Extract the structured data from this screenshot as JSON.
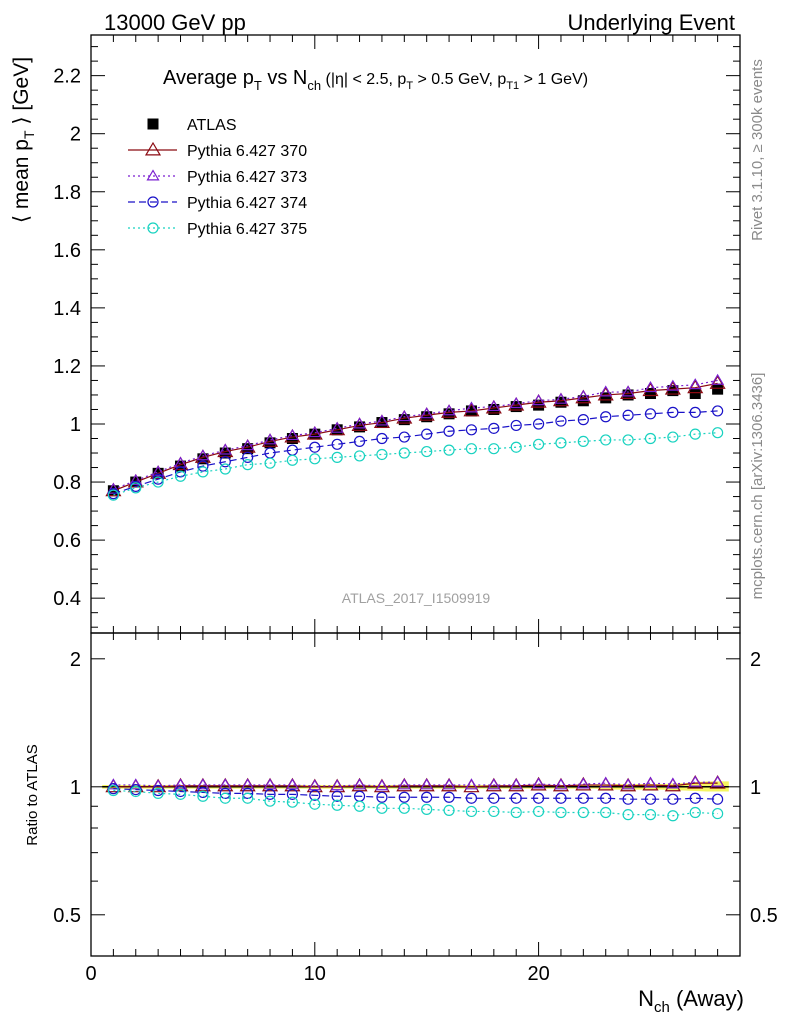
{
  "header": {
    "left": "13000 GeV pp",
    "right": "Underlying Event"
  },
  "side": {
    "rivet": "Rivet 3.1.10, ≥ 300k events",
    "mcplots": "mcplots.cern.ch [arXiv:1306.3436]"
  },
  "watermark": "ATLAS_2017_I1509919",
  "chart_data": [
    {
      "type": "scatter",
      "title": "Average p_T vs N_ch (|η| < 2.5, p_T > 0.5 GeV, p_T1 > 1 GeV)",
      "ylabel": "⟨ mean p_T ⟩ [GeV]",
      "xlim": [
        0,
        29
      ],
      "ylim": [
        0.28,
        2.34
      ],
      "yticks": [
        "0.4",
        "0.6",
        "0.8",
        "1",
        "1.2",
        "1.4",
        "1.6",
        "1.8",
        "2",
        "2.2"
      ],
      "legend_position": "top-left",
      "x": [
        1,
        2,
        3,
        4,
        5,
        6,
        7,
        8,
        9,
        10,
        11,
        12,
        13,
        14,
        15,
        16,
        17,
        18,
        19,
        20,
        21,
        22,
        23,
        24,
        25,
        26,
        27,
        28
      ],
      "series": [
        {
          "name": "ATLAS",
          "color": "#000000",
          "marker": "filled-square",
          "line": "none",
          "values": [
            0.77,
            0.8,
            0.83,
            0.855,
            0.88,
            0.9,
            0.915,
            0.935,
            0.95,
            0.965,
            0.98,
            0.99,
            1.005,
            1.015,
            1.025,
            1.035,
            1.045,
            1.05,
            1.06,
            1.065,
            1.075,
            1.08,
            1.09,
            1.1,
            1.105,
            1.115,
            1.105,
            1.12
          ]
        },
        {
          "name": "Pythia 6.427 370",
          "color": "#8b0a12",
          "marker": "open-triangle",
          "line": "solid",
          "values": [
            0.77,
            0.8,
            0.83,
            0.86,
            0.885,
            0.905,
            0.92,
            0.94,
            0.955,
            0.965,
            0.98,
            0.995,
            1.005,
            1.02,
            1.03,
            1.04,
            1.045,
            1.055,
            1.065,
            1.075,
            1.08,
            1.09,
            1.1,
            1.105,
            1.115,
            1.12,
            1.125,
            1.14
          ]
        },
        {
          "name": "Pythia 6.427 373",
          "color": "#7a1fd0",
          "marker": "open-triangle-small",
          "line": "dotted",
          "values": [
            0.775,
            0.805,
            0.835,
            0.865,
            0.89,
            0.91,
            0.925,
            0.945,
            0.96,
            0.97,
            0.985,
            1.0,
            1.01,
            1.025,
            1.035,
            1.045,
            1.055,
            1.06,
            1.07,
            1.08,
            1.085,
            1.095,
            1.11,
            1.11,
            1.125,
            1.13,
            1.135,
            1.15
          ]
        },
        {
          "name": "Pythia 6.427 374",
          "color": "#1a12c8",
          "marker": "open-circle",
          "line": "dashed",
          "values": [
            0.76,
            0.785,
            0.81,
            0.835,
            0.855,
            0.87,
            0.885,
            0.9,
            0.91,
            0.92,
            0.93,
            0.94,
            0.95,
            0.955,
            0.965,
            0.975,
            0.98,
            0.985,
            0.995,
            1.0,
            1.01,
            1.015,
            1.025,
            1.03,
            1.035,
            1.04,
            1.04,
            1.045
          ]
        },
        {
          "name": "Pythia 6.427 375",
          "color": "#18d2c0",
          "marker": "open-circle",
          "line": "dotted",
          "values": [
            0.755,
            0.78,
            0.8,
            0.82,
            0.835,
            0.845,
            0.86,
            0.865,
            0.875,
            0.88,
            0.885,
            0.89,
            0.895,
            0.9,
            0.905,
            0.91,
            0.915,
            0.915,
            0.92,
            0.93,
            0.935,
            0.94,
            0.945,
            0.945,
            0.95,
            0.955,
            0.965,
            0.97
          ]
        }
      ]
    },
    {
      "type": "scatter",
      "ylabel": "Ratio to ATLAS",
      "xlabel": "N_ch (Away)",
      "xlim": [
        0,
        29
      ],
      "xticks": [
        "0",
        "10",
        "20"
      ],
      "ylim": [
        0.4,
        2.3
      ],
      "yscale": "log",
      "yticks": [
        "0.5",
        "1",
        "2"
      ],
      "x": [
        1,
        2,
        3,
        4,
        5,
        6,
        7,
        8,
        9,
        10,
        11,
        12,
        13,
        14,
        15,
        16,
        17,
        18,
        19,
        20,
        21,
        22,
        23,
        24,
        25,
        26,
        27,
        28
      ],
      "band": {
        "color": "#f5f560",
        "values_low": [
          0.99,
          0.99,
          0.99,
          0.99,
          0.99,
          0.99,
          0.99,
          0.99,
          0.99,
          0.99,
          0.99,
          0.99,
          0.99,
          0.99,
          0.99,
          0.99,
          0.99,
          0.99,
          0.99,
          0.99,
          0.99,
          0.99,
          0.99,
          0.985,
          0.985,
          0.985,
          0.98,
          0.975
        ],
        "values_high": [
          1.01,
          1.01,
          1.01,
          1.01,
          1.01,
          1.01,
          1.01,
          1.01,
          1.01,
          1.01,
          1.01,
          1.01,
          1.01,
          1.01,
          1.01,
          1.01,
          1.01,
          1.01,
          1.01,
          1.01,
          1.01,
          1.01,
          1.01,
          1.015,
          1.015,
          1.015,
          1.02,
          1.03
        ]
      },
      "series": [
        {
          "name": "Pythia 6.427 370",
          "color": "#8b0a12",
          "marker": "open-triangle",
          "line": "solid",
          "values": [
            1.0,
            1.0,
            1.0,
            1.005,
            1.005,
            1.005,
            1.005,
            1.005,
            1.005,
            1.0,
            1.0,
            1.005,
            1.0,
            1.005,
            1.005,
            1.005,
            1.0,
            1.005,
            1.005,
            1.01,
            1.005,
            1.01,
            1.01,
            1.005,
            1.01,
            1.005,
            1.02,
            1.02
          ]
        },
        {
          "name": "Pythia 6.427 373",
          "color": "#7a1fd0",
          "marker": "open-triangle-small",
          "line": "dotted",
          "values": [
            1.01,
            1.01,
            1.005,
            1.01,
            1.01,
            1.01,
            1.01,
            1.01,
            1.01,
            1.005,
            1.005,
            1.01,
            1.005,
            1.01,
            1.01,
            1.01,
            1.01,
            1.01,
            1.01,
            1.015,
            1.01,
            1.015,
            1.02,
            1.01,
            1.02,
            1.015,
            1.025,
            1.025
          ]
        },
        {
          "name": "Pythia 6.427 374",
          "color": "#1a12c8",
          "marker": "open-circle",
          "line": "dashed",
          "values": [
            0.99,
            0.985,
            0.98,
            0.975,
            0.97,
            0.965,
            0.965,
            0.96,
            0.96,
            0.955,
            0.95,
            0.95,
            0.945,
            0.945,
            0.945,
            0.945,
            0.94,
            0.94,
            0.94,
            0.94,
            0.94,
            0.94,
            0.94,
            0.935,
            0.935,
            0.935,
            0.94,
            0.935
          ]
        },
        {
          "name": "Pythia 6.427 375",
          "color": "#18d2c0",
          "marker": "open-circle",
          "line": "dotted",
          "values": [
            0.98,
            0.975,
            0.965,
            0.96,
            0.95,
            0.94,
            0.94,
            0.925,
            0.92,
            0.91,
            0.905,
            0.9,
            0.89,
            0.89,
            0.885,
            0.88,
            0.875,
            0.875,
            0.87,
            0.875,
            0.87,
            0.87,
            0.87,
            0.86,
            0.86,
            0.855,
            0.87,
            0.865
          ]
        }
      ]
    }
  ]
}
